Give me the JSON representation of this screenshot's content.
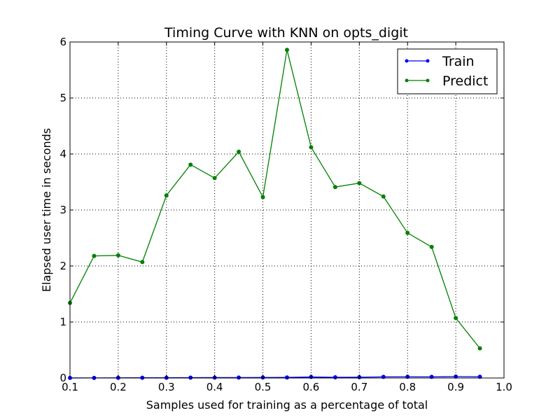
{
  "chart_data": {
    "type": "line",
    "title": "Timing Curve with KNN on opts_digit",
    "xlabel": "Samples used for training as a percentage of total",
    "ylabel": "Elapsed user time in seconds",
    "xlim": [
      0.1,
      1.0
    ],
    "ylim": [
      0,
      6
    ],
    "xticks": [
      "0.1",
      "0.2",
      "0.3",
      "0.4",
      "0.5",
      "0.6",
      "0.7",
      "0.8",
      "0.9",
      "1.0"
    ],
    "yticks": [
      "0",
      "1",
      "2",
      "3",
      "4",
      "5",
      "6"
    ],
    "grid": true,
    "legend_position": "top-right",
    "x": [
      0.1,
      0.15,
      0.2,
      0.25,
      0.3,
      0.35,
      0.4,
      0.45,
      0.5,
      0.55,
      0.6,
      0.65,
      0.7,
      0.75,
      0.8,
      0.85,
      0.9,
      0.95
    ],
    "series": [
      {
        "name": "Train",
        "color": "#0000ff",
        "values": [
          0.001,
          0.002,
          0.003,
          0.004,
          0.005,
          0.006,
          0.007,
          0.008,
          0.009,
          0.01,
          0.018,
          0.012,
          0.014,
          0.02,
          0.022,
          0.02,
          0.025,
          0.022
        ]
      },
      {
        "name": "Predict",
        "color": "#008000",
        "values": [
          1.34,
          2.18,
          2.19,
          2.07,
          3.26,
          3.81,
          3.57,
          4.04,
          3.23,
          5.86,
          4.12,
          3.41,
          3.48,
          3.24,
          2.59,
          2.34,
          1.07,
          0.53
        ]
      }
    ]
  }
}
